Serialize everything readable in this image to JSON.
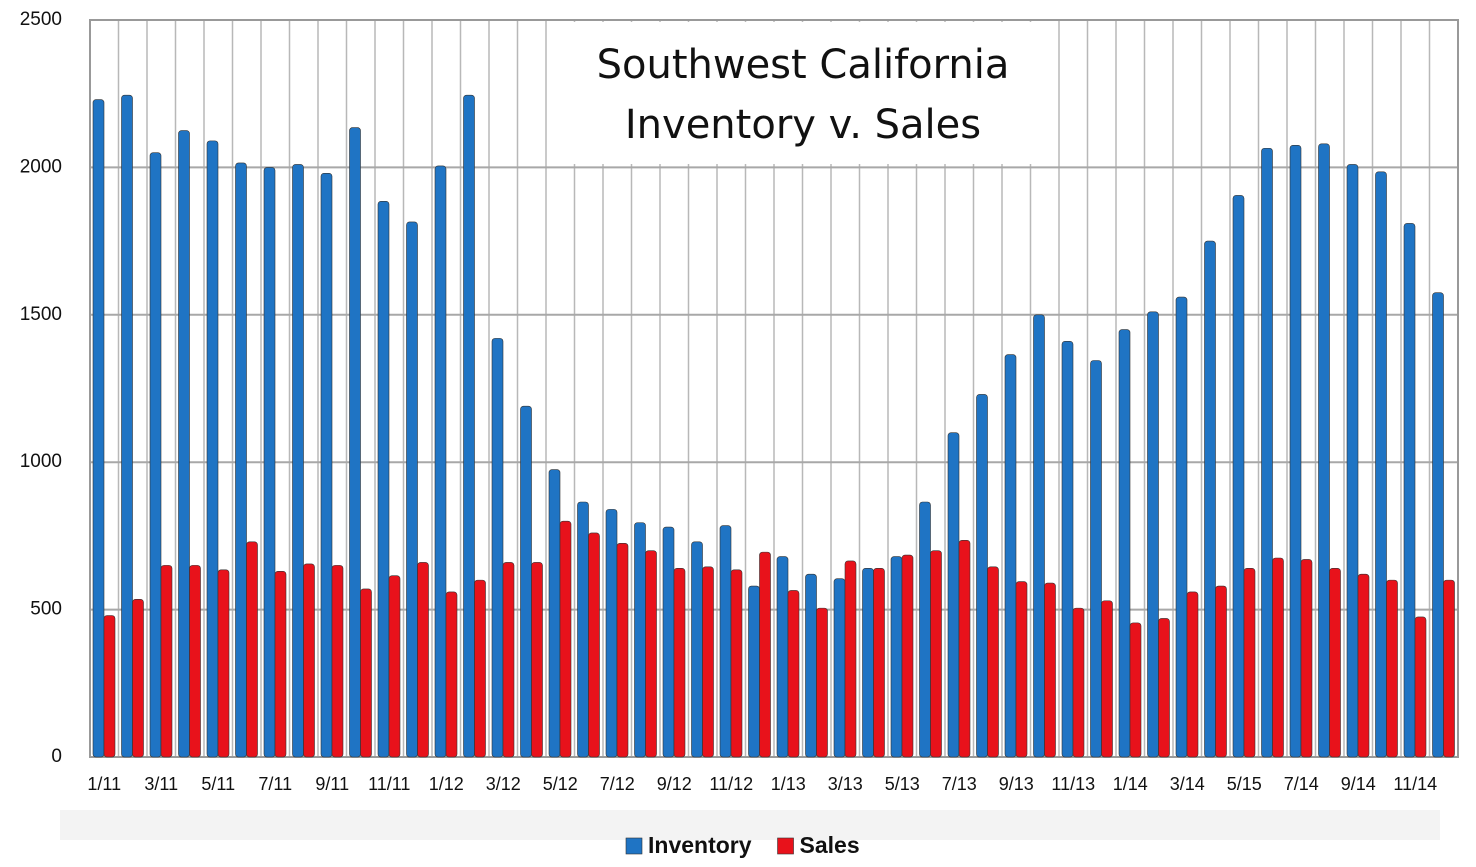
{
  "chart_data": {
    "type": "bar",
    "title": [
      "Southwest California",
      "Inventory v. Sales"
    ],
    "categories": [
      "1/11",
      null,
      "3/11",
      null,
      "5/11",
      null,
      "7/11",
      null,
      "9/11",
      null,
      "11/11",
      null,
      "1/12",
      null,
      "3/12",
      null,
      "5/12",
      null,
      "7/12",
      null,
      "9/12",
      null,
      "11/12",
      null,
      "1/13",
      null,
      "3/13",
      null,
      "5/13",
      null,
      "7/13",
      null,
      "9/13",
      null,
      "11/13",
      null,
      "1/14",
      null,
      "3/14",
      null,
      "5/15",
      null,
      "7/14",
      null,
      "9/14",
      null,
      "11/14",
      null
    ],
    "series": [
      {
        "name": "Inventory",
        "color": "#1f74c4",
        "values": [
          2230,
          2245,
          2050,
          2125,
          2090,
          2015,
          2000,
          2010,
          1980,
          2135,
          1885,
          1815,
          2005,
          2245,
          1420,
          1190,
          975,
          865,
          840,
          795,
          780,
          730,
          785,
          580,
          680,
          620,
          605,
          640,
          680,
          865,
          1100,
          1230,
          1365,
          1500,
          1410,
          1345,
          1450,
          1510,
          1560,
          1750,
          1905,
          2065,
          2075,
          2080,
          2010,
          1985,
          1810,
          1575
        ]
      },
      {
        "name": "Sales",
        "color": "#e8121b",
        "values": [
          480,
          535,
          650,
          650,
          635,
          730,
          630,
          655,
          650,
          570,
          615,
          660,
          560,
          600,
          660,
          660,
          800,
          760,
          725,
          700,
          640,
          645,
          635,
          695,
          565,
          505,
          665,
          640,
          685,
          700,
          735,
          645,
          595,
          590,
          505,
          530,
          455,
          470,
          560,
          580,
          640,
          675,
          670,
          640,
          620,
          600,
          475,
          600
        ]
      }
    ],
    "ylim": [
      0,
      2500
    ],
    "yticks": [
      0,
      500,
      1000,
      1500,
      2000,
      2500
    ],
    "grid": true,
    "legend": "bottom"
  }
}
